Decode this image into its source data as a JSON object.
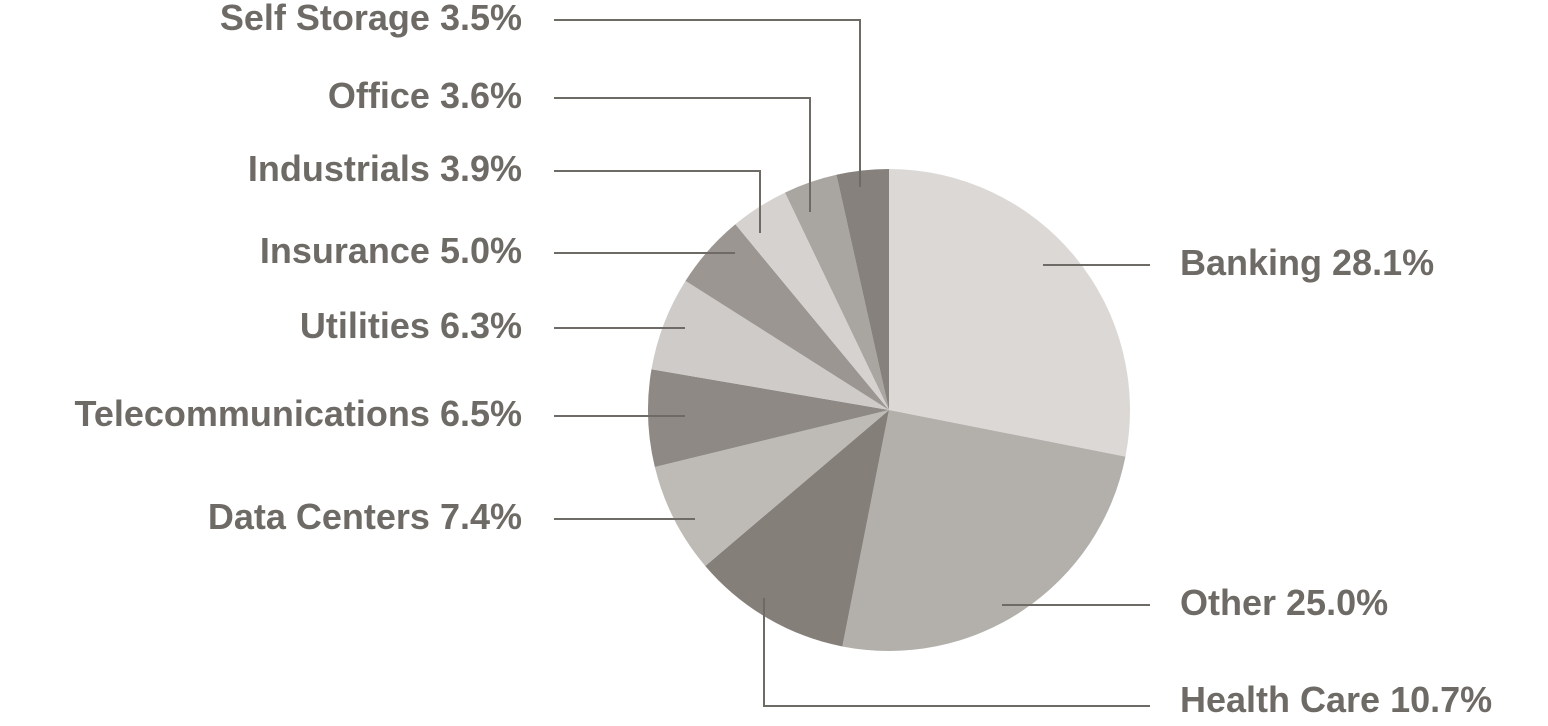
{
  "chart_data": {
    "type": "pie",
    "categories": [
      "Banking",
      "Other",
      "Health Care",
      "Data Centers",
      "Telecommunications",
      "Utilities",
      "Insurance",
      "Industrials",
      "Office",
      "Self Storage"
    ],
    "values": [
      28.1,
      25.0,
      10.7,
      7.4,
      6.5,
      6.3,
      5.0,
      3.9,
      3.6,
      3.5
    ],
    "value_labels": [
      "28.1%",
      "25.0%",
      "10.7%",
      "7.4%",
      "6.5%",
      "6.3%",
      "5.0%",
      "3.9%",
      "3.6%",
      "3.5%"
    ],
    "colors": [
      "#dcd8d6",
      "#b3afab",
      "#857f7a",
      "#bebab6",
      "#8e8985",
      "#cfcbc8",
      "#9b9692",
      "#d6d2cf",
      "#a9a5a1",
      "#86817c"
    ]
  }
}
